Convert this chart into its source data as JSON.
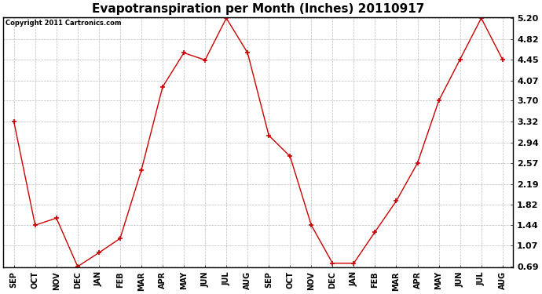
{
  "title": "Evapotranspiration per Month (Inches) 20110917",
  "copyright": "Copyright 2011 Cartronics.com",
  "months": [
    "SEP",
    "OCT",
    "NOV",
    "DEC",
    "JAN",
    "FEB",
    "MAR",
    "APR",
    "MAY",
    "JUN",
    "JUL",
    "AUG",
    "SEP",
    "OCT",
    "NOV",
    "DEC",
    "JAN",
    "FEB",
    "MAR",
    "APR",
    "MAY",
    "JUN",
    "JUL",
    "AUG"
  ],
  "values": [
    3.32,
    1.44,
    1.57,
    0.69,
    0.94,
    1.2,
    2.44,
    3.95,
    4.57,
    4.44,
    5.2,
    4.57,
    3.07,
    2.69,
    1.44,
    0.75,
    0.75,
    1.32,
    1.88,
    2.57,
    3.7,
    4.45,
    5.2,
    4.45
  ],
  "ylim_min": 0.69,
  "ylim_max": 5.2,
  "yticks": [
    0.69,
    1.07,
    1.44,
    1.82,
    2.19,
    2.57,
    2.94,
    3.32,
    3.7,
    4.07,
    4.45,
    4.82,
    5.2
  ],
  "line_color": "#cc0000",
  "marker": "+",
  "bg_color": "#ffffff",
  "grid_color": "#bbbbbb",
  "title_fontsize": 11,
  "copyright_fontsize": 6,
  "tick_fontsize": 7,
  "ytick_fontsize": 8
}
